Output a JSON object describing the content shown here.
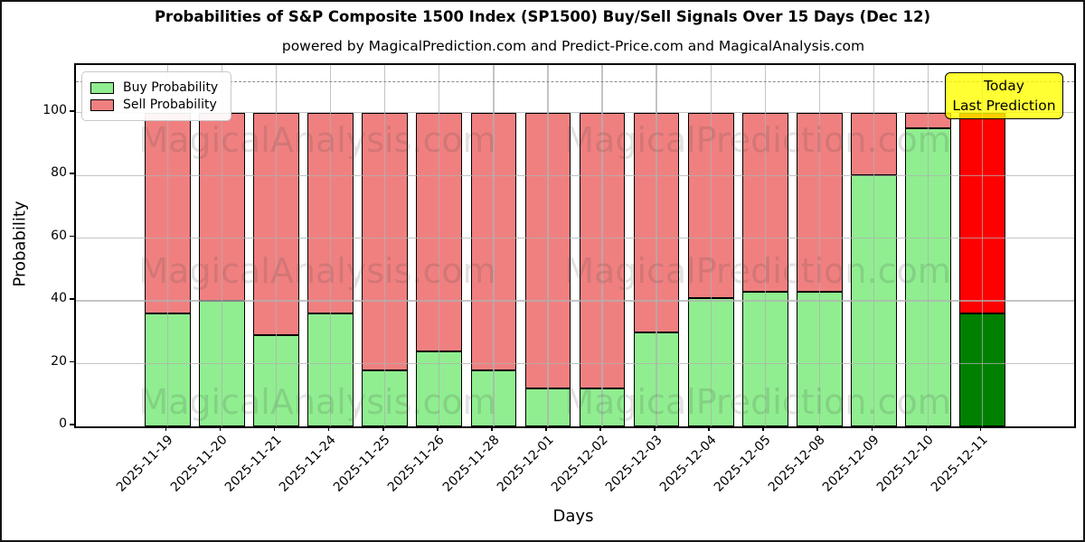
{
  "title": "Probabilities of S&P Composite 1500 Index (SP1500) Buy/Sell Signals Over 15 Days (Dec 12)",
  "subtitle": "powered by MagicalPrediction.com and Predict-Price.com and MagicalAnalysis.com",
  "legend": {
    "buy_label": "Buy Probability",
    "sell_label": "Sell Probability"
  },
  "annotation": {
    "line1": "Today",
    "line2": "Last Prediction"
  },
  "axes": {
    "xlabel": "Days",
    "ylabel": "Probability",
    "yticks": [
      0,
      20,
      40,
      60,
      80,
      100
    ],
    "ylim": [
      0,
      115.2
    ],
    "dashed_line_y": 110,
    "grid": true
  },
  "watermarks": {
    "left_text": "MagicalAnalysis.com",
    "right_text": "MagicalPrediction.com"
  },
  "colors": {
    "buy": "#90EE90",
    "sell": "#F08080",
    "today_buy": "#008000",
    "today_sell": "#FF0000",
    "bar_edge": "#000000",
    "annotation_bg": "#FFFF00",
    "grid": "#b0b0b0",
    "dashed_line": "#8a8a8a"
  },
  "chart_data": {
    "type": "bar",
    "stacked": true,
    "title": "Probabilities of S&P Composite 1500 Index (SP1500) Buy/Sell Signals Over 15 Days (Dec 12)",
    "xlabel": "Days",
    "ylabel": "Probability",
    "ylim": [
      0,
      115.2
    ],
    "legend_position": "upper left",
    "categories": [
      "2025-11-19",
      "2025-11-20",
      "2025-11-21",
      "2025-11-24",
      "2025-11-25",
      "2025-11-26",
      "2025-11-28",
      "2025-12-01",
      "2025-12-02",
      "2025-12-03",
      "2025-12-04",
      "2025-12-05",
      "2025-12-08",
      "2025-12-09",
      "2025-12-10",
      "2025-12-11"
    ],
    "series": [
      {
        "name": "Buy Probability",
        "values": [
          36,
          40,
          29,
          36,
          18,
          24,
          18,
          12,
          12,
          30,
          41,
          43,
          43,
          80,
          95,
          36
        ]
      },
      {
        "name": "Sell Probability",
        "values": [
          64,
          60,
          71,
          64,
          82,
          76,
          82,
          88,
          88,
          70,
          59,
          57,
          57,
          20,
          5,
          64
        ]
      }
    ],
    "today_index": 15
  }
}
